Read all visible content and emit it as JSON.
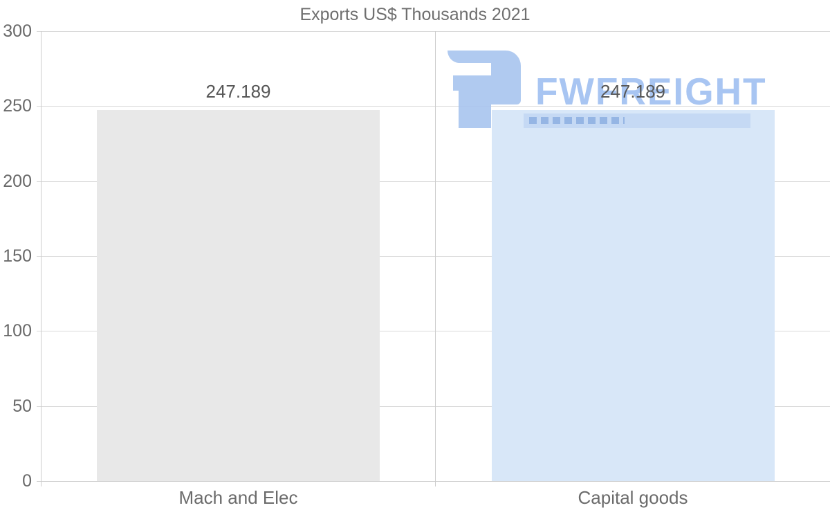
{
  "chart_data": {
    "type": "bar",
    "title": "Exports US$ Thousands 2021",
    "categories": [
      "Mach and Elec",
      "Capital goods"
    ],
    "values": [
      247.189,
      247.189
    ],
    "value_labels": [
      "247.189",
      "247.189"
    ],
    "series_colors": [
      "#e8e8e8",
      "#d8e7f8"
    ],
    "xlabel": "",
    "ylabel": "",
    "ylim": [
      0,
      300
    ],
    "yticks": [
      300,
      250,
      200,
      150,
      100,
      50,
      0
    ],
    "ytick_labels": [
      "300",
      "250",
      "200",
      "150",
      "100",
      "50",
      "0"
    ],
    "grid": "horizontal",
    "legend": "none",
    "colors": {
      "gridline": "#d9d9d9",
      "baseline": "#c3c3c3",
      "axis_line": "#cccccc",
      "title_text": "#6f6f6f",
      "tick_text": "#696969",
      "value_text": "#575757",
      "category_text": "#6b6b6b"
    }
  },
  "watermark": {
    "brand": "FWFREIGHT",
    "logo_icon": "fwfreight-mark",
    "text_color": "#9dbef1",
    "mark_color": "#a6c3ef"
  }
}
